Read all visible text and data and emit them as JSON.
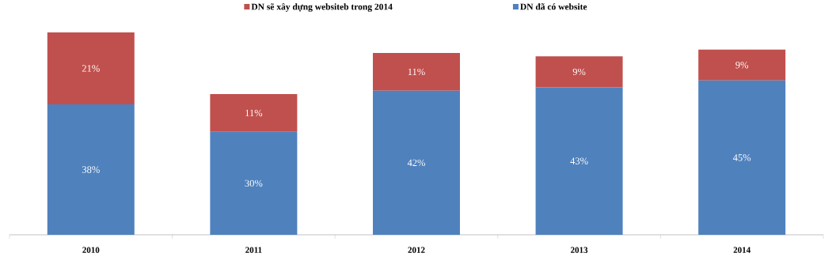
{
  "chart_data": {
    "type": "bar",
    "stacked": true,
    "categories": [
      "2010",
      "2011",
      "2012",
      "2013",
      "2014"
    ],
    "legend": "top",
    "series": [
      {
        "name": "DN đã có website",
        "color": "#4f81bd",
        "values": [
          38,
          30,
          42,
          43,
          45
        ],
        "value_labels": [
          "38%",
          "30%",
          "42%",
          "43%",
          "45%"
        ]
      },
      {
        "name": "DN sẽ xây dựng websiteb trong 2014",
        "color": "#c0504d",
        "values": [
          21,
          11,
          11,
          9,
          9
        ],
        "value_labels": [
          "21%",
          "11%",
          "11%",
          "9%",
          "9%"
        ]
      }
    ]
  }
}
